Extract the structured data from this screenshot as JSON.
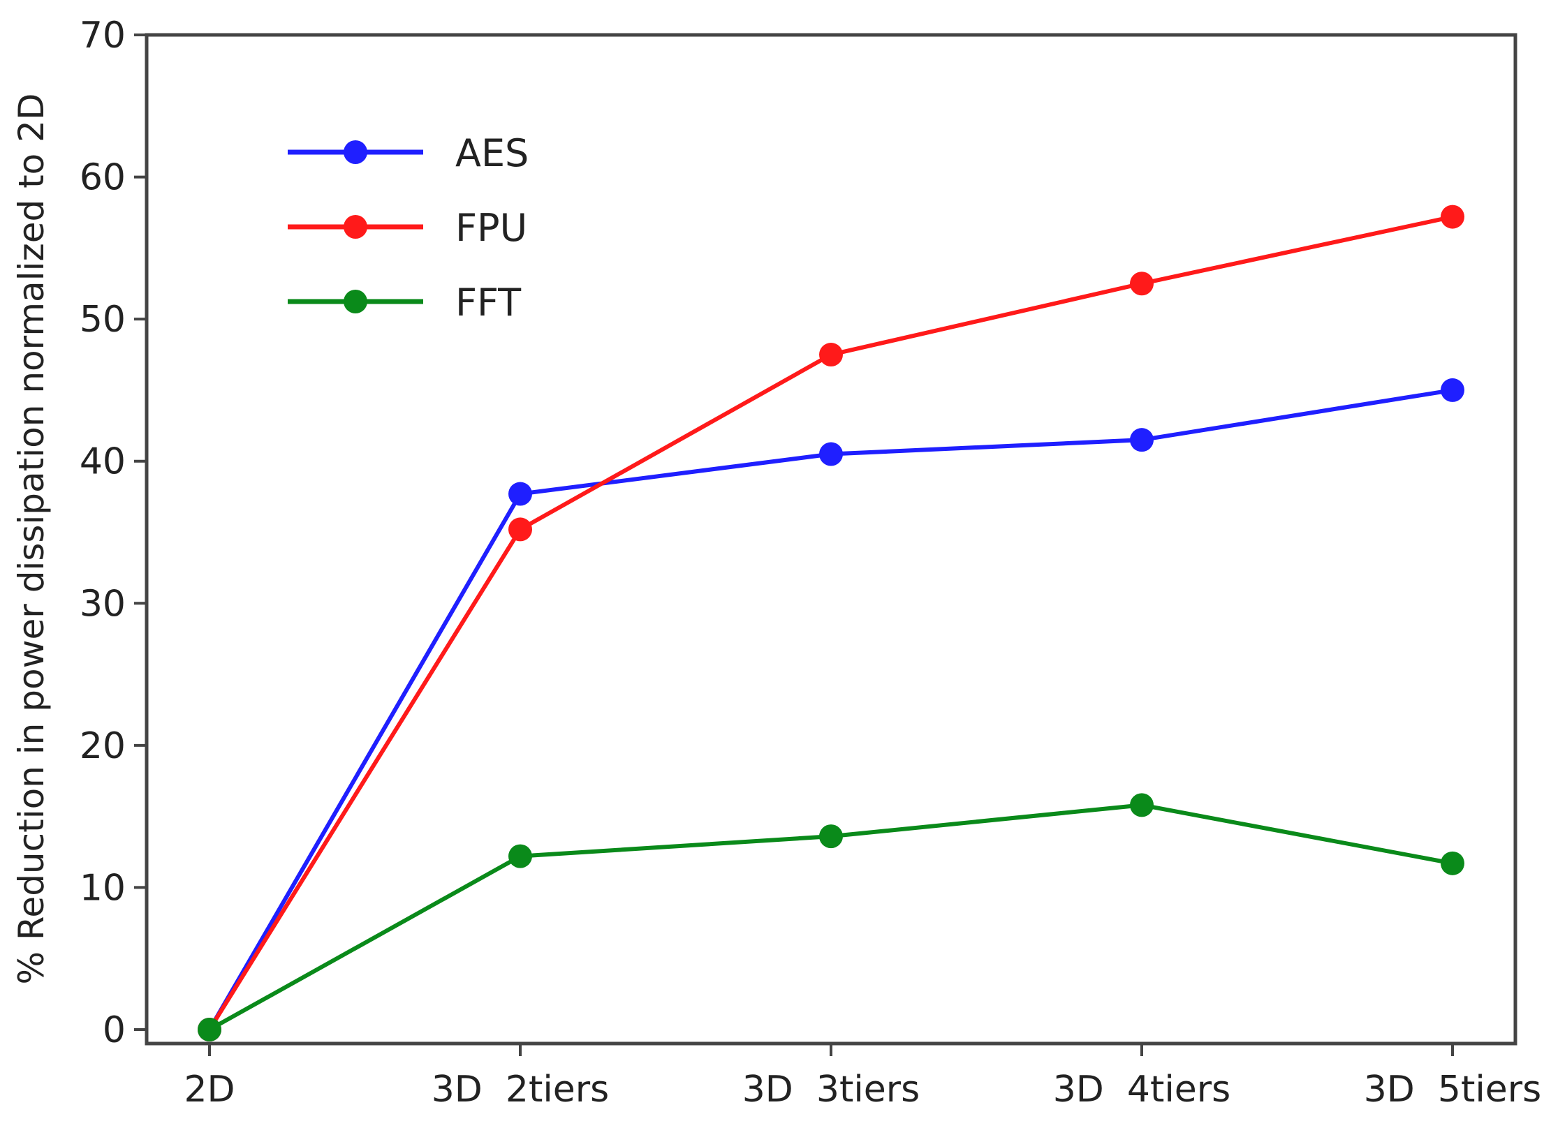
{
  "chart_data": {
    "type": "line",
    "title": "",
    "xlabel": "",
    "ylabel": "% Reduction in power dissipation normalized to 2D",
    "categories": [
      "2D",
      "3D  2tiers",
      "3D  3tiers",
      "3D  4tiers",
      "3D  5tiers"
    ],
    "ylim": [
      0,
      70
    ],
    "yticks": [
      0,
      10,
      20,
      30,
      40,
      50,
      60,
      70
    ],
    "grid": false,
    "legend_position": "upper-left",
    "series": [
      {
        "name": "AES",
        "color": "#1f1fff",
        "values": [
          0,
          37.7,
          40.5,
          41.5,
          45.0
        ]
      },
      {
        "name": "FPU",
        "color": "#ff1a1a",
        "values": [
          0,
          35.2,
          47.5,
          52.5,
          57.2
        ]
      },
      {
        "name": "FFT",
        "color": "#0a8a1a",
        "values": [
          0,
          12.2,
          13.6,
          15.8,
          11.7
        ]
      }
    ]
  }
}
